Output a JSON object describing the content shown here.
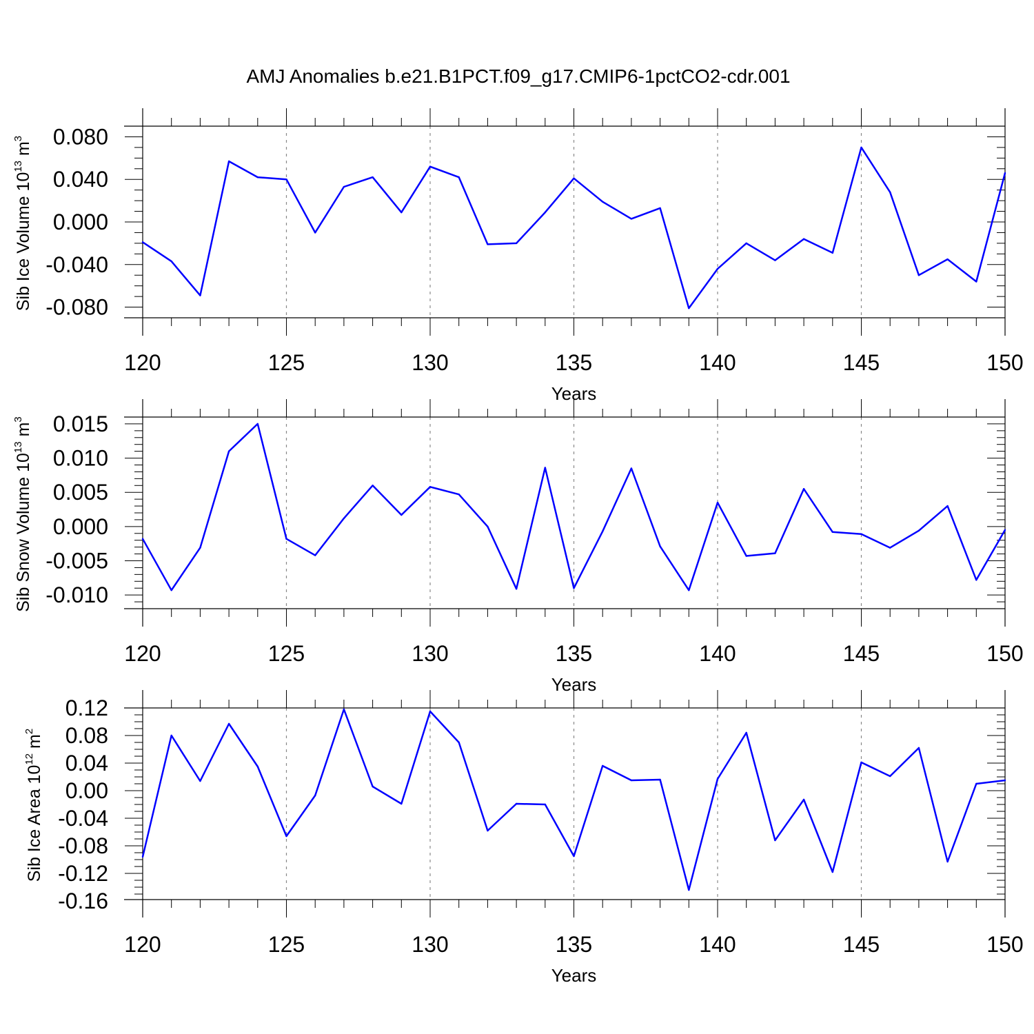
{
  "figure": {
    "title": "AMJ Anomalies b.e21.B1PCT.f09_g17.CMIP6-1pctCO2-cdr.001"
  },
  "colors": {
    "line": "#0000ff",
    "axes": "#000000",
    "grid": "#888888"
  },
  "chart_data": [
    {
      "type": "line",
      "name": "ice-volume",
      "xlabel": "Years",
      "ylabel": {
        "prefix": "Sib Ice Volume 10",
        "sup1": "13",
        "unit": " m",
        "sup2": "3"
      },
      "xlim": [
        120,
        150
      ],
      "ylim": [
        -0.09,
        0.09
      ],
      "xticks": [
        120,
        125,
        130,
        135,
        140,
        145,
        150
      ],
      "xtick_labels": [
        "120",
        "125",
        "130",
        "135",
        "140",
        "145",
        "150"
      ],
      "yticks": [
        -0.08,
        -0.04,
        0.0,
        0.04,
        0.08
      ],
      "ytick_labels": [
        "-0.080",
        "-0.040",
        "0.000",
        "0.040",
        "0.080"
      ],
      "yminor_step": 0.01,
      "grid_x": [
        125,
        130,
        135,
        140,
        145
      ],
      "x": [
        120,
        121,
        122,
        123,
        124,
        125,
        126,
        127,
        128,
        129,
        130,
        131,
        132,
        133,
        134,
        135,
        136,
        137,
        138,
        139,
        140,
        141,
        142,
        143,
        144,
        145,
        146,
        147,
        148,
        149,
        150
      ],
      "y": [
        -0.019,
        -0.037,
        -0.069,
        0.057,
        0.042,
        0.04,
        -0.01,
        0.033,
        0.042,
        0.009,
        0.052,
        0.042,
        -0.021,
        -0.02,
        0.009,
        0.041,
        0.019,
        0.003,
        0.013,
        -0.081,
        -0.044,
        -0.02,
        -0.036,
        -0.016,
        -0.029,
        0.07,
        0.028,
        -0.05,
        -0.035,
        -0.056,
        0.046
      ]
    },
    {
      "type": "line",
      "name": "snow-volume",
      "xlabel": "Years",
      "ylabel": {
        "prefix": "Sib Snow Volume 10",
        "sup1": "13",
        "unit": " m",
        "sup2": "3"
      },
      "xlim": [
        120,
        150
      ],
      "ylim": [
        -0.012,
        0.016
      ],
      "xticks": [
        120,
        125,
        130,
        135,
        140,
        145,
        150
      ],
      "xtick_labels": [
        "120",
        "125",
        "130",
        "135",
        "140",
        "145",
        "150"
      ],
      "yticks": [
        -0.01,
        -0.005,
        0.0,
        0.005,
        0.01,
        0.015
      ],
      "ytick_labels": [
        "-0.010",
        "-0.005",
        "0.000",
        "0.005",
        "0.010",
        "0.015"
      ],
      "yminor_step": 0.001,
      "grid_x": [
        125,
        130,
        135,
        140,
        145
      ],
      "x": [
        120,
        121,
        122,
        123,
        124,
        125,
        126,
        127,
        128,
        129,
        130,
        131,
        132,
        133,
        134,
        135,
        136,
        137,
        138,
        139,
        140,
        141,
        142,
        143,
        144,
        145,
        146,
        147,
        148,
        149,
        150
      ],
      "y": [
        -0.0018,
        -0.0093,
        -0.0031,
        0.011,
        0.015,
        -0.0018,
        -0.0042,
        0.0012,
        0.006,
        0.0017,
        0.0058,
        0.0047,
        0.0,
        -0.0091,
        0.0086,
        -0.009,
        -0.0007,
        0.0085,
        -0.0029,
        -0.0093,
        0.0035,
        -0.0043,
        -0.0039,
        0.0055,
        -0.0008,
        -0.0011,
        -0.0031,
        -0.0006,
        0.003,
        -0.0078,
        -0.0005
      ]
    },
    {
      "type": "line",
      "name": "ice-area",
      "xlabel": "Years",
      "ylabel": {
        "prefix": "Sib Ice Area 10",
        "sup1": "12",
        "unit": " m",
        "sup2": "2"
      },
      "xlim": [
        120,
        150
      ],
      "ylim": [
        -0.158,
        0.12
      ],
      "xticks": [
        120,
        125,
        130,
        135,
        140,
        145,
        150
      ],
      "xtick_labels": [
        "120",
        "125",
        "130",
        "135",
        "140",
        "145",
        "150"
      ],
      "yticks": [
        -0.16,
        -0.12,
        -0.08,
        -0.04,
        0.0,
        0.04,
        0.08,
        0.12
      ],
      "ytick_labels": [
        "-0.16",
        "-0.12",
        "-0.08",
        "-0.04",
        "0.00",
        "0.04",
        "0.08",
        "0.12"
      ],
      "yminor_step": 0.01,
      "grid_x": [
        125,
        130,
        135,
        140,
        145
      ],
      "x": [
        120,
        121,
        122,
        123,
        124,
        125,
        126,
        127,
        128,
        129,
        130,
        131,
        132,
        133,
        134,
        135,
        136,
        137,
        138,
        139,
        140,
        141,
        142,
        143,
        144,
        145,
        146,
        147,
        148,
        149,
        150
      ],
      "y": [
        -0.096,
        0.08,
        0.014,
        0.097,
        0.035,
        -0.066,
        -0.007,
        0.118,
        0.006,
        -0.019,
        0.115,
        0.07,
        -0.058,
        -0.019,
        -0.02,
        -0.095,
        0.036,
        0.015,
        0.016,
        -0.144,
        0.017,
        0.084,
        -0.072,
        -0.013,
        -0.118,
        0.041,
        0.021,
        0.062,
        -0.103,
        0.01,
        0.015
      ]
    }
  ]
}
